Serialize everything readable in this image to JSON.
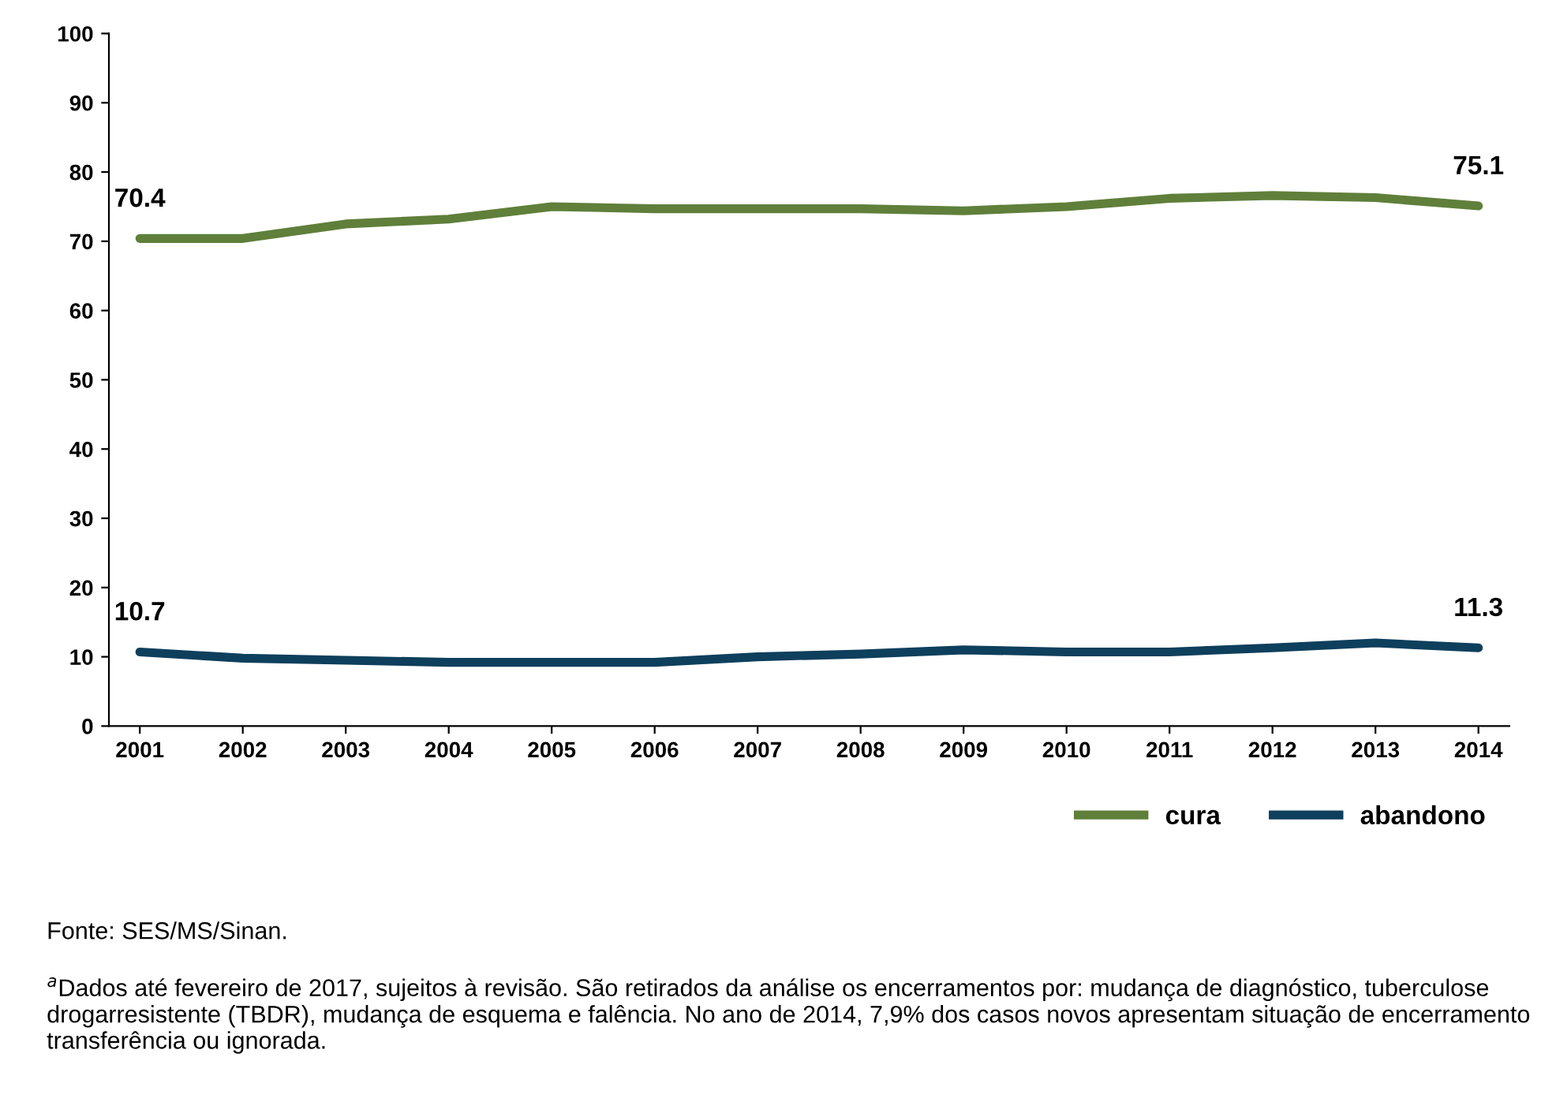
{
  "chart_data": {
    "type": "line",
    "categories": [
      "2001",
      "2002",
      "2003",
      "2004",
      "2005",
      "2006",
      "2007",
      "2008",
      "2009",
      "2010",
      "2011",
      "2012",
      "2013",
      "2014"
    ],
    "series": [
      {
        "name": "cura",
        "color": "#5f7f3a",
        "values": [
          70.4,
          70.4,
          72.5,
          73.2,
          75.0,
          74.7,
          74.7,
          74.7,
          74.4,
          75.0,
          76.2,
          76.6,
          76.3,
          75.1
        ],
        "value_labels": [
          "70.4",
          null,
          null,
          null,
          null,
          null,
          null,
          null,
          null,
          null,
          null,
          null,
          null,
          "75.1"
        ]
      },
      {
        "name": "abandono",
        "color": "#0e3f5c",
        "values": [
          10.7,
          9.8,
          9.5,
          9.2,
          9.2,
          9.2,
          10.0,
          10.4,
          11.0,
          10.7,
          10.7,
          11.3,
          12.0,
          11.3
        ],
        "value_labels": [
          "10.7",
          null,
          null,
          null,
          null,
          null,
          null,
          null,
          null,
          null,
          null,
          null,
          null,
          "11.3"
        ]
      }
    ],
    "ylim": [
      0,
      100
    ],
    "yticks": [
      0,
      10,
      20,
      30,
      40,
      50,
      60,
      70,
      80,
      90,
      100
    ],
    "grid": false,
    "legend": "bottom right",
    "marker": "none",
    "line_style": "solid",
    "annotations": [
      "Fonte: SES/MS/Sinan.",
      "$^{a}$Dados até fevereiro de 2017, sujeitos à revisão. São retirados da análise os encerramentos por: mudança de diagnóstico, tuberculose drogarresistente (TBDR), mudança de esquema e falência. No ano de 2014, 7,9% dos casos novos apresentam situação de encerramento transferência ou ignorada."
    ]
  }
}
